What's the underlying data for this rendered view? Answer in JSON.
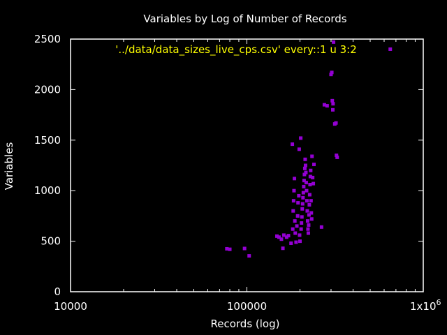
{
  "chart_data": {
    "type": "scatter",
    "title": "Variables by Log of Number of Records",
    "xlabel": "Records (log)",
    "ylabel": "Variables",
    "x_scale": "log",
    "xlim": [
      10000,
      1000000
    ],
    "ylim": [
      0,
      2500
    ],
    "x_ticks": [
      10000,
      100000,
      1000000
    ],
    "x_tick_labels": [
      "10000",
      "100000",
      "1x10^6"
    ],
    "y_ticks": [
      0,
      500,
      1000,
      1500,
      2000,
      2500
    ],
    "y_tick_labels": [
      "0",
      "500",
      "1000",
      "1500",
      "2000",
      "2500"
    ],
    "legend": "top-center",
    "series": [
      {
        "name": "'../data/data_sizes_live_cps.csv' every::1 u 3:2",
        "color": "#9400d3",
        "points": [
          [
            77000,
            425
          ],
          [
            80000,
            420
          ],
          [
            97000,
            428
          ],
          [
            103000,
            355
          ],
          [
            148000,
            550
          ],
          [
            152000,
            540
          ],
          [
            157000,
            520
          ],
          [
            160000,
            430
          ],
          [
            162000,
            560
          ],
          [
            168000,
            540
          ],
          [
            172000,
            555
          ],
          [
            178000,
            480
          ],
          [
            181000,
            1460
          ],
          [
            182000,
            620
          ],
          [
            183000,
            800
          ],
          [
            184000,
            900
          ],
          [
            185000,
            1000
          ],
          [
            186000,
            1120
          ],
          [
            187000,
            700
          ],
          [
            188000,
            580
          ],
          [
            190000,
            490
          ],
          [
            192000,
            650
          ],
          [
            194000,
            750
          ],
          [
            195000,
            880
          ],
          [
            197000,
            950
          ],
          [
            198000,
            1410
          ],
          [
            199000,
            560
          ],
          [
            200000,
            500
          ],
          [
            202000,
            1520
          ],
          [
            203000,
            620
          ],
          [
            204000,
            680
          ],
          [
            205000,
            740
          ],
          [
            206000,
            820
          ],
          [
            207000,
            870
          ],
          [
            208000,
            930
          ],
          [
            209000,
            980
          ],
          [
            210000,
            1040
          ],
          [
            211000,
            1100
          ],
          [
            212000,
            1160
          ],
          [
            213000,
            1220
          ],
          [
            214000,
            1310
          ],
          [
            215000,
            1250
          ],
          [
            216000,
            1180
          ],
          [
            217000,
            1080
          ],
          [
            218000,
            1000
          ],
          [
            219000,
            900
          ],
          [
            220000,
            800
          ],
          [
            221000,
            700
          ],
          [
            222000,
            620
          ],
          [
            223000,
            580
          ],
          [
            224000,
            660
          ],
          [
            225000,
            760
          ],
          [
            226000,
            860
          ],
          [
            227000,
            960
          ],
          [
            228000,
            1060
          ],
          [
            229000,
            1140
          ],
          [
            230000,
            1200
          ],
          [
            231000,
            900
          ],
          [
            232000,
            780
          ],
          [
            233000,
            720
          ],
          [
            234000,
            1340
          ],
          [
            236000,
            1130
          ],
          [
            238000,
            1070
          ],
          [
            240000,
            1260
          ],
          [
            265000,
            640
          ],
          [
            275000,
            1850
          ],
          [
            285000,
            1840
          ],
          [
            300000,
            2150
          ],
          [
            303000,
            2170
          ],
          [
            305000,
            1890
          ],
          [
            307000,
            1800
          ],
          [
            308000,
            1860
          ],
          [
            310000,
            2470
          ],
          [
            315000,
            1660
          ],
          [
            320000,
            1670
          ],
          [
            322000,
            1350
          ],
          [
            325000,
            1330
          ],
          [
            650000,
            2400
          ]
        ]
      }
    ]
  }
}
